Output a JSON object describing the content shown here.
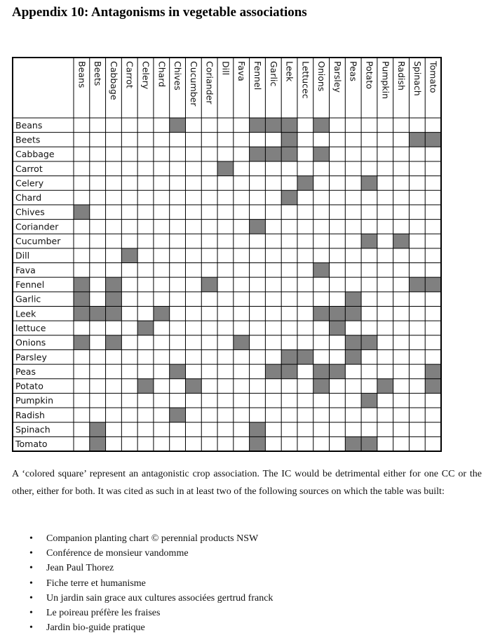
{
  "title": "Appendix 10: Antagonisms in vegetable associations",
  "table": {
    "columns": [
      "Beans",
      "Beets",
      "Cabbage",
      "Carrot",
      "Celery",
      "Chard",
      "Chives",
      "Cucumber",
      "Coriander",
      "Dill",
      "Fava",
      "Fennel",
      "Garlic",
      "Leek",
      "Lettucec",
      "Onions",
      "Parsley",
      "Peas",
      "Potato",
      "Pumpkin",
      "Radish",
      "Spinach",
      "Tomato"
    ],
    "rows": [
      "Beans",
      "Beets",
      "Cabbage",
      "Carrot",
      "Celery",
      "Chard",
      "Chives",
      "Coriander",
      "Cucumber",
      "Dill",
      "Fava",
      "Fennel",
      "Garlic",
      "Leek",
      "lettuce",
      "Onions",
      "Parsley",
      "Peas",
      "Potato",
      "Pumpkin",
      "Radish",
      "Spinach",
      "Tomato"
    ],
    "antagonistic": [
      [
        6,
        11,
        12,
        13,
        15
      ],
      [
        13,
        21,
        22
      ],
      [
        11,
        12,
        13,
        15
      ],
      [
        9
      ],
      [
        14,
        18
      ],
      [
        13
      ],
      [
        0
      ],
      [
        11
      ],
      [
        18,
        20
      ],
      [
        3
      ],
      [
        15
      ],
      [
        0,
        2,
        8,
        21,
        22
      ],
      [
        0,
        2,
        17
      ],
      [
        0,
        1,
        2,
        5,
        15,
        16,
        17
      ],
      [
        4,
        16
      ],
      [
        0,
        2,
        10,
        17,
        18
      ],
      [
        13,
        14,
        17
      ],
      [
        6,
        12,
        13,
        15,
        16,
        22
      ],
      [
        4,
        7,
        15,
        19,
        22
      ],
      [
        18
      ],
      [
        6
      ],
      [
        1,
        11
      ],
      [
        1,
        11,
        17,
        18
      ]
    ],
    "colors": {
      "filled": "#808080",
      "empty": "#ffffff",
      "grid": "#000000"
    }
  },
  "description": "A ‘colored square’ represent an antagonistic crop association. The IC would be detrimental either for one CC or the other, either for both. It was cited as such in at least two of the following sources on which the table was built:",
  "bullet": "•",
  "sources": [
    "Companion planting chart © perennial products NSW",
    "Conférence de monsieur vandomme",
    "Jean Paul Thorez",
    "Fiche terre et humanisme",
    "Un jardin sain grace aux cultures associées gertrud franck",
    "Le poireau préfère les fraises",
    "Jardin bio-guide pratique"
  ]
}
